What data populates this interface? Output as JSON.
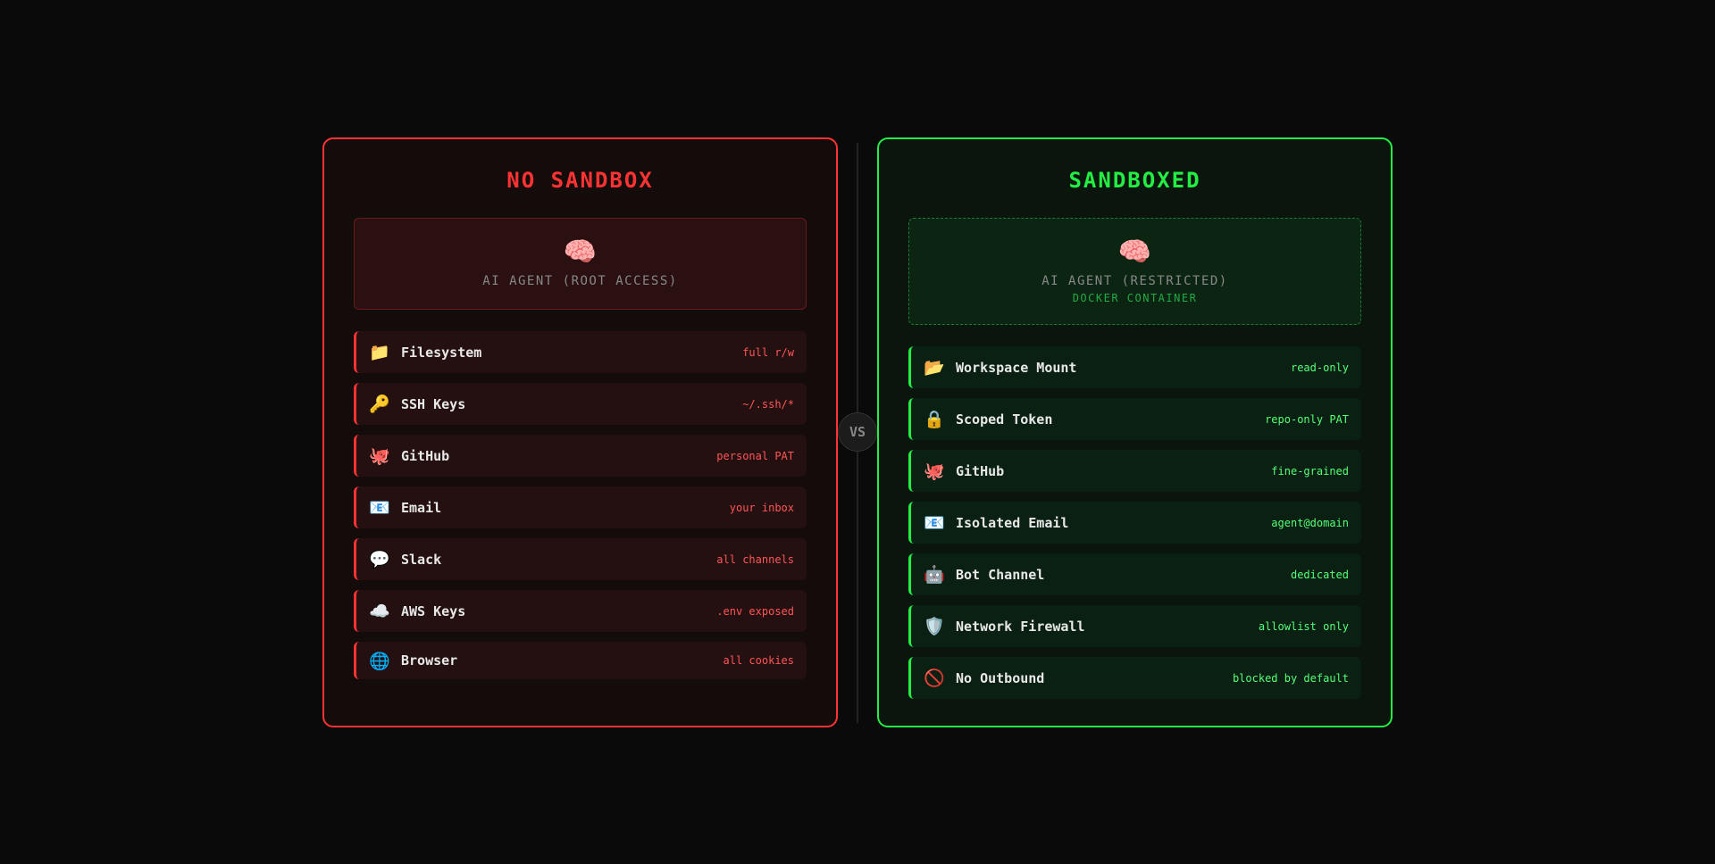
{
  "colors": {
    "danger": "#ff3333",
    "safe": "#22ee44"
  },
  "vs_label": "VS",
  "left": {
    "title": "NO SANDBOX",
    "agent": {
      "icon": "brain-icon",
      "emoji": "🧠",
      "label": "AI AGENT (ROOT ACCESS)"
    },
    "items": [
      {
        "icon": "folder-icon",
        "emoji": "📁",
        "name": "Filesystem",
        "value": "full r/w"
      },
      {
        "icon": "key-icon",
        "emoji": "🔑",
        "name": "SSH Keys",
        "value": "~/.ssh/*"
      },
      {
        "icon": "octopus-icon",
        "emoji": "🐙",
        "name": "GitHub",
        "value": "personal PAT"
      },
      {
        "icon": "email-icon",
        "emoji": "📧",
        "name": "Email",
        "value": "your inbox"
      },
      {
        "icon": "speech-bubble-icon",
        "emoji": "💬",
        "name": "Slack",
        "value": "all channels"
      },
      {
        "icon": "cloud-icon",
        "emoji": "☁️",
        "name": "AWS Keys",
        "value": ".env exposed"
      },
      {
        "icon": "globe-icon",
        "emoji": "🌐",
        "name": "Browser",
        "value": "all cookies"
      }
    ]
  },
  "right": {
    "title": "SANDBOXED",
    "agent": {
      "icon": "brain-icon",
      "emoji": "🧠",
      "label": "AI AGENT (RESTRICTED)",
      "sublabel": "DOCKER CONTAINER"
    },
    "items": [
      {
        "icon": "open-folder-icon",
        "emoji": "📂",
        "name": "Workspace Mount",
        "value": "read-only"
      },
      {
        "icon": "lock-icon",
        "emoji": "🔒",
        "name": "Scoped Token",
        "value": "repo-only PAT"
      },
      {
        "icon": "octopus-icon",
        "emoji": "🐙",
        "name": "GitHub",
        "value": "fine-grained"
      },
      {
        "icon": "email-icon",
        "emoji": "📧",
        "name": "Isolated Email",
        "value": "agent@domain"
      },
      {
        "icon": "robot-icon",
        "emoji": "🤖",
        "name": "Bot Channel",
        "value": "dedicated"
      },
      {
        "icon": "shield-icon",
        "emoji": "🛡️",
        "name": "Network Firewall",
        "value": "allowlist only"
      },
      {
        "icon": "prohibited-icon",
        "emoji": "🚫",
        "name": "No Outbound",
        "value": "blocked by default"
      }
    ]
  }
}
